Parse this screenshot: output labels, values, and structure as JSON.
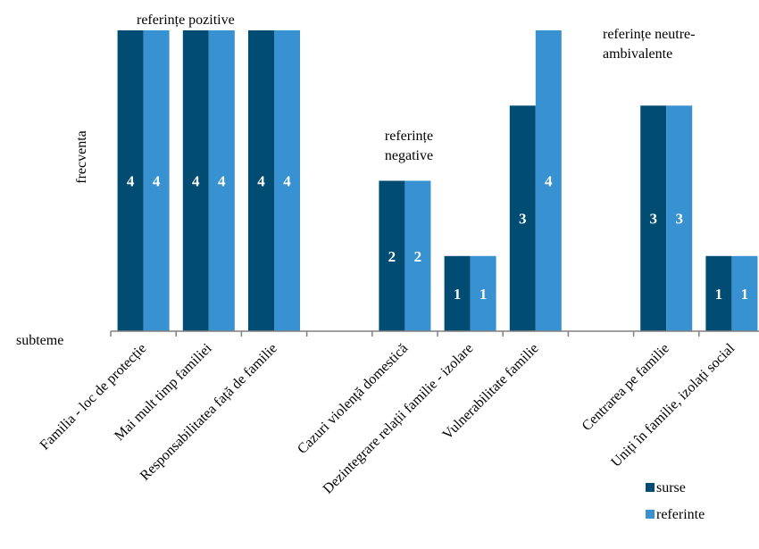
{
  "chart_data": {
    "type": "bar",
    "title": "",
    "ylabel": "frecventa",
    "xlabel": "subteme",
    "ylim": [
      0,
      4
    ],
    "categories": [
      "Familia - loc de protecție",
      "Mai mult timp familiei",
      "Responsabilitatea față de familie",
      "",
      "Cazuri violență domestică",
      "Dezintegrare relații familie - izolare",
      "Vulnerabilitate familie",
      "",
      "Centrarea pe familie",
      "Uniți în familie, izolați social"
    ],
    "series": [
      {
        "name": "surse",
        "color": "#004c72",
        "values": [
          4,
          4,
          4,
          null,
          2,
          1,
          3,
          null,
          3,
          1
        ]
      },
      {
        "name": "referinte",
        "color": "#3891d1",
        "values": [
          4,
          4,
          4,
          null,
          2,
          1,
          4,
          null,
          3,
          1
        ]
      }
    ],
    "group_labels": [
      {
        "lines": [
          "referințe pozitive"
        ]
      },
      {
        "lines": [
          "referințe",
          "negative"
        ]
      },
      {
        "lines": [
          "referințe neutre-",
          "ambivalente"
        ]
      }
    ],
    "grid": false,
    "legend_position": "bottom-right"
  }
}
